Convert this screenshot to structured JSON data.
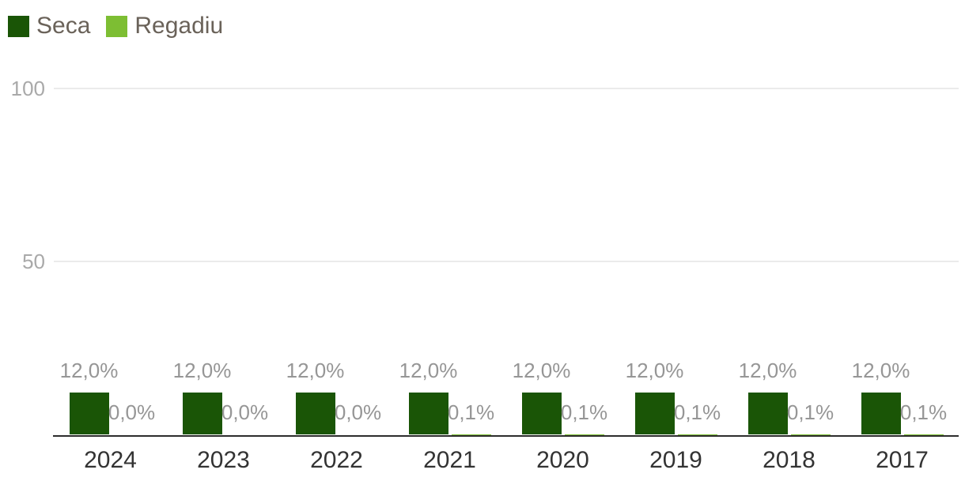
{
  "legend": {
    "position": "top-left"
  },
  "chart_data": {
    "type": "bar",
    "categories": [
      "2024",
      "2023",
      "2022",
      "2021",
      "2020",
      "2019",
      "2018",
      "2017"
    ],
    "series": [
      {
        "name": "Seca",
        "color": "#1A5506",
        "values": [
          12.0,
          12.0,
          12.0,
          12.0,
          12.0,
          12.0,
          12.0,
          12.0
        ],
        "labels": [
          "12,0%",
          "12,0%",
          "12,0%",
          "12,0%",
          "12,0%",
          "12,0%",
          "12,0%",
          "12,0%"
        ]
      },
      {
        "name": "Regadiu",
        "color": "#7DBE33",
        "values": [
          0.0,
          0.0,
          0.0,
          0.1,
          0.1,
          0.1,
          0.1,
          0.1
        ],
        "labels": [
          "0,0%",
          "0,0%",
          "0,0%",
          "0,1%",
          "0,1%",
          "0,1%",
          "0,1%",
          "0,1%"
        ]
      }
    ],
    "yticks": [
      100,
      50
    ],
    "ytick_labels": [
      "100",
      "50"
    ],
    "ylim": [
      0,
      110
    ],
    "grid": true,
    "legend_position": "top-left",
    "value_label_color": "#969696",
    "axis_label_color": "#333333",
    "ytick_color": "#a9a9a9"
  }
}
